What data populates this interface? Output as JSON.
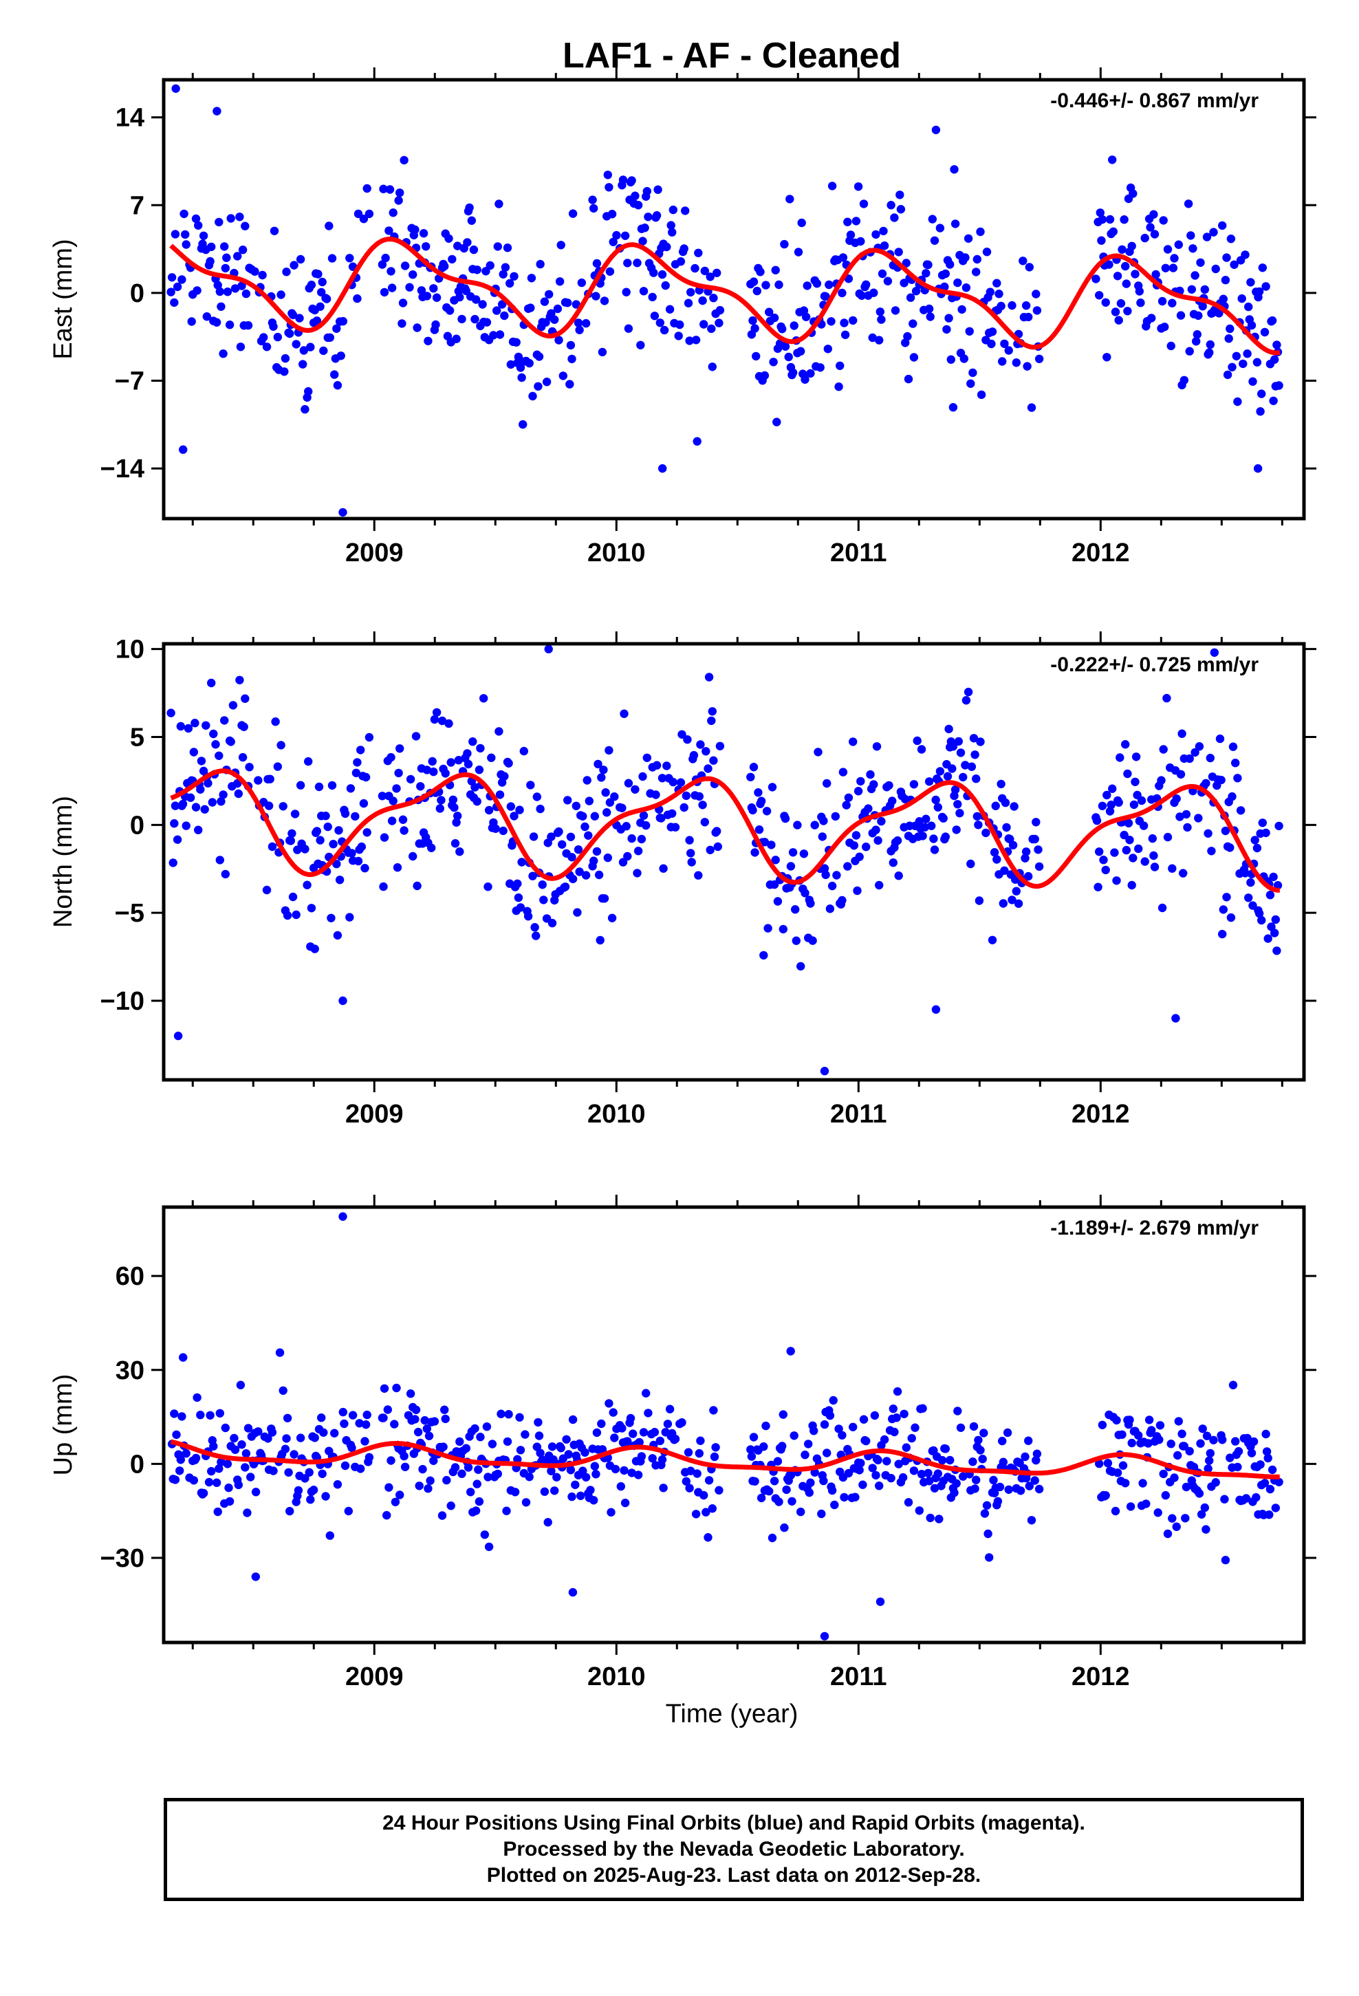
{
  "title": "LAF1  - AF - Cleaned",
  "x_axis_label": "Time (year)",
  "footer": {
    "line1": "24 Hour Positions Using Final Orbits (blue) and Rapid Orbits (magenta).",
    "line2": "Processed by the Nevada Geodetic Laboratory.",
    "line3": "Plotted on 2025-Aug-23. Last data on 2012-Sep-28."
  },
  "colors": {
    "points": "#0000ff",
    "model": "#ff0000",
    "frame": "#000000"
  },
  "chart_data": [
    {
      "type": "scatter",
      "component": "east",
      "ylabel": "East (mm)",
      "rate_text": "-0.446+/- 0.867 mm/yr",
      "xlim": [
        2008.13,
        2012.84
      ],
      "ylim": [
        -18,
        17
      ],
      "xticks": [
        2009,
        2010,
        2011,
        2012
      ],
      "yticks": [
        14,
        7,
        0,
        -7,
        -14
      ],
      "grid": false,
      "data_range": [
        2008.16,
        2012.74
      ],
      "model": {
        "offset": 0.3,
        "trend": -0.446,
        "a1": 3.0,
        "phi1": 0.6,
        "a2": 1.3,
        "phi2": 1.4
      },
      "scatter_sigma": 3.4,
      "outliers": [
        [
          2008.18,
          16.3
        ],
        [
          2008.35,
          14.5
        ],
        [
          2008.87,
          -17.5
        ],
        [
          2008.21,
          -12.5
        ],
        [
          2012.65,
          -14.0
        ],
        [
          2011.32,
          13.0
        ],
        [
          2010.19,
          -14.0
        ]
      ]
    },
    {
      "type": "scatter",
      "component": "north",
      "ylabel": "North (mm)",
      "rate_text": "-0.222+/- 0.725 mm/yr",
      "xlim": [
        2008.13,
        2012.84
      ],
      "ylim": [
        -14.5,
        10.3
      ],
      "xticks": [
        2009,
        2010,
        2011,
        2012
      ],
      "yticks": [
        10,
        5,
        0,
        -5,
        -10
      ],
      "grid": false,
      "data_range": [
        2008.16,
        2012.74
      ],
      "model": {
        "offset": 0.1,
        "trend": -0.222,
        "a1": 2.5,
        "phi1": -0.2,
        "a2": 0.9,
        "phi2": 2.2
      },
      "scatter_sigma": 2.3,
      "outliers": [
        [
          2008.19,
          -12.0
        ],
        [
          2008.87,
          -10.0
        ],
        [
          2009.72,
          10.0
        ],
        [
          2010.86,
          -14.0
        ],
        [
          2011.32,
          -10.5
        ],
        [
          2012.47,
          9.8
        ],
        [
          2012.31,
          -11.0
        ]
      ]
    },
    {
      "type": "scatter",
      "component": "up",
      "ylabel": "Up (mm)",
      "rate_text": "-1.189+/- 2.679 mm/yr",
      "xlim": [
        2008.13,
        2012.84
      ],
      "ylim": [
        -57,
        82
      ],
      "xticks": [
        2009,
        2010,
        2011,
        2012
      ],
      "yticks": [
        60,
        30,
        0,
        -30
      ],
      "grid": false,
      "data_range": [
        2008.16,
        2012.74
      ],
      "model": {
        "offset": 1.5,
        "trend": -1.189,
        "a1": 3.0,
        "phi1": 0.9,
        "a2": 1.0,
        "phi2": 0.5
      },
      "scatter_sigma": 9.0,
      "outliers": [
        [
          2008.87,
          79.0
        ],
        [
          2010.86,
          -55.0
        ],
        [
          2011.09,
          -44.0
        ],
        [
          2009.82,
          -41.0
        ],
        [
          2008.51,
          -36.0
        ],
        [
          2010.72,
          36.0
        ],
        [
          2008.21,
          34.0
        ]
      ]
    }
  ]
}
